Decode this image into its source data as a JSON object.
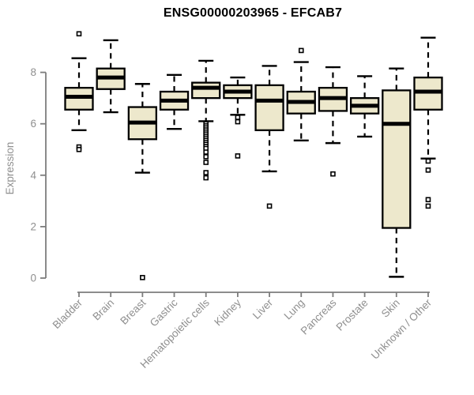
{
  "chart_data": {
    "type": "boxplot",
    "title": "ENSG00000203965 - EFCAB7",
    "ylabel": "Expression",
    "xlabel": "",
    "ylim": [
      0,
      9.7
    ],
    "yticks": [
      0,
      2,
      4,
      6,
      8
    ],
    "grid": false,
    "legend": false,
    "colors": {
      "box_fill": "#EDE8CC",
      "box_stroke": "#000000",
      "median": "#000000",
      "whisker": "#000000",
      "outlier_fill": "#ffffff",
      "outlier_stroke": "#000000",
      "axis": "#7d7d7d",
      "tick_label": "#8f8f8f"
    },
    "categories": [
      "Bladder",
      "Brain",
      "Breast",
      "Gastric",
      "Hematopoietic cells",
      "Kidney",
      "Liver",
      "Lung",
      "Pancreas",
      "Prostate",
      "Skin",
      "Unknown / Other"
    ],
    "series": [
      {
        "category": "Bladder",
        "whisker_low": 5.75,
        "q1": 6.55,
        "median": 7.05,
        "q3": 7.4,
        "whisker_high": 8.55,
        "outliers": [
          9.5,
          5.1,
          5.0
        ]
      },
      {
        "category": "Brain",
        "whisker_low": 6.45,
        "q1": 7.35,
        "median": 7.8,
        "q3": 8.15,
        "whisker_high": 9.25,
        "outliers": []
      },
      {
        "category": "Breast",
        "whisker_low": 4.1,
        "q1": 5.4,
        "median": 6.05,
        "q3": 6.65,
        "whisker_high": 7.55,
        "outliers": [
          0.02
        ]
      },
      {
        "category": "Gastric",
        "whisker_low": 5.8,
        "q1": 6.55,
        "median": 6.9,
        "q3": 7.25,
        "whisker_high": 7.9,
        "outliers": []
      },
      {
        "category": "Hematopoietic cells",
        "whisker_low": 6.1,
        "q1": 7.0,
        "median": 7.4,
        "q3": 7.6,
        "whisker_high": 8.45,
        "outliers": [
          6.0,
          5.92,
          5.84,
          5.76,
          5.68,
          5.6,
          5.52,
          5.44,
          5.36,
          5.28,
          5.2,
          5.12,
          5.04,
          4.9,
          4.72,
          4.5,
          4.1,
          3.9
        ]
      },
      {
        "category": "Kidney",
        "whisker_low": 6.35,
        "q1": 7.0,
        "median": 7.25,
        "q3": 7.5,
        "whisker_high": 7.8,
        "outliers": [
          6.25,
          6.08,
          4.75
        ]
      },
      {
        "category": "Liver",
        "whisker_low": 4.15,
        "q1": 5.75,
        "median": 6.9,
        "q3": 7.5,
        "whisker_high": 8.25,
        "outliers": [
          2.8
        ]
      },
      {
        "category": "Lung",
        "whisker_low": 5.35,
        "q1": 6.4,
        "median": 6.85,
        "q3": 7.25,
        "whisker_high": 8.4,
        "outliers": [
          8.85
        ]
      },
      {
        "category": "Pancreas",
        "whisker_low": 5.25,
        "q1": 6.5,
        "median": 7.0,
        "q3": 7.4,
        "whisker_high": 8.2,
        "outliers": [
          4.05
        ]
      },
      {
        "category": "Prostate",
        "whisker_low": 5.5,
        "q1": 6.4,
        "median": 6.7,
        "q3": 7.0,
        "whisker_high": 7.85,
        "outliers": []
      },
      {
        "category": "Skin",
        "whisker_low": 0.05,
        "q1": 1.95,
        "median": 6.0,
        "q3": 7.3,
        "whisker_high": 8.15,
        "outliers": []
      },
      {
        "category": "Unknown / Other",
        "whisker_low": 4.65,
        "q1": 6.55,
        "median": 7.25,
        "q3": 7.8,
        "whisker_high": 9.35,
        "outliers": [
          4.55,
          4.2,
          3.05,
          2.8
        ]
      }
    ]
  }
}
